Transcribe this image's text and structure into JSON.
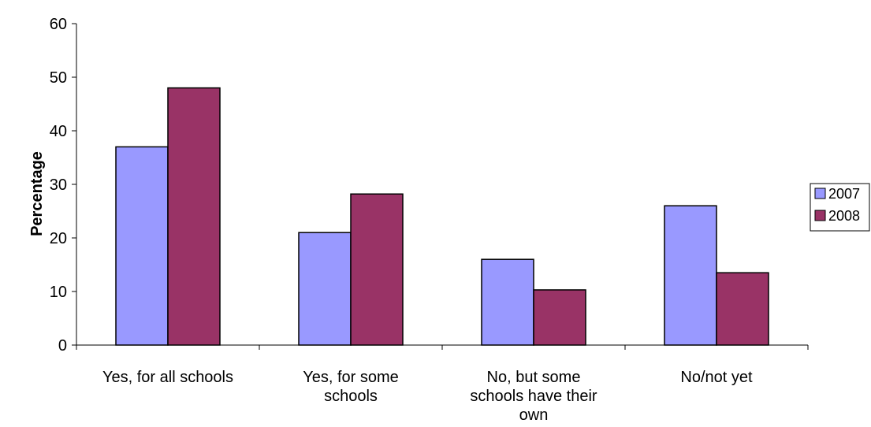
{
  "chart_data": {
    "type": "bar",
    "title": "",
    "xlabel": "",
    "ylabel": "Percentage",
    "ylim": [
      0,
      60
    ],
    "yticks": [
      0,
      10,
      20,
      30,
      40,
      50,
      60
    ],
    "grid": false,
    "legend_position": "right",
    "categories": [
      [
        "Yes, for all schools"
      ],
      [
        "Yes, for some",
        "schools"
      ],
      [
        "No, but some",
        "schools have their",
        "own"
      ],
      [
        "No/not yet"
      ]
    ],
    "series": [
      {
        "name": "2007",
        "color": "#9999ff",
        "values": [
          37,
          21,
          16,
          26
        ]
      },
      {
        "name": "2008",
        "color": "#993366",
        "values": [
          48,
          28.2,
          10.3,
          13.5
        ]
      }
    ]
  }
}
